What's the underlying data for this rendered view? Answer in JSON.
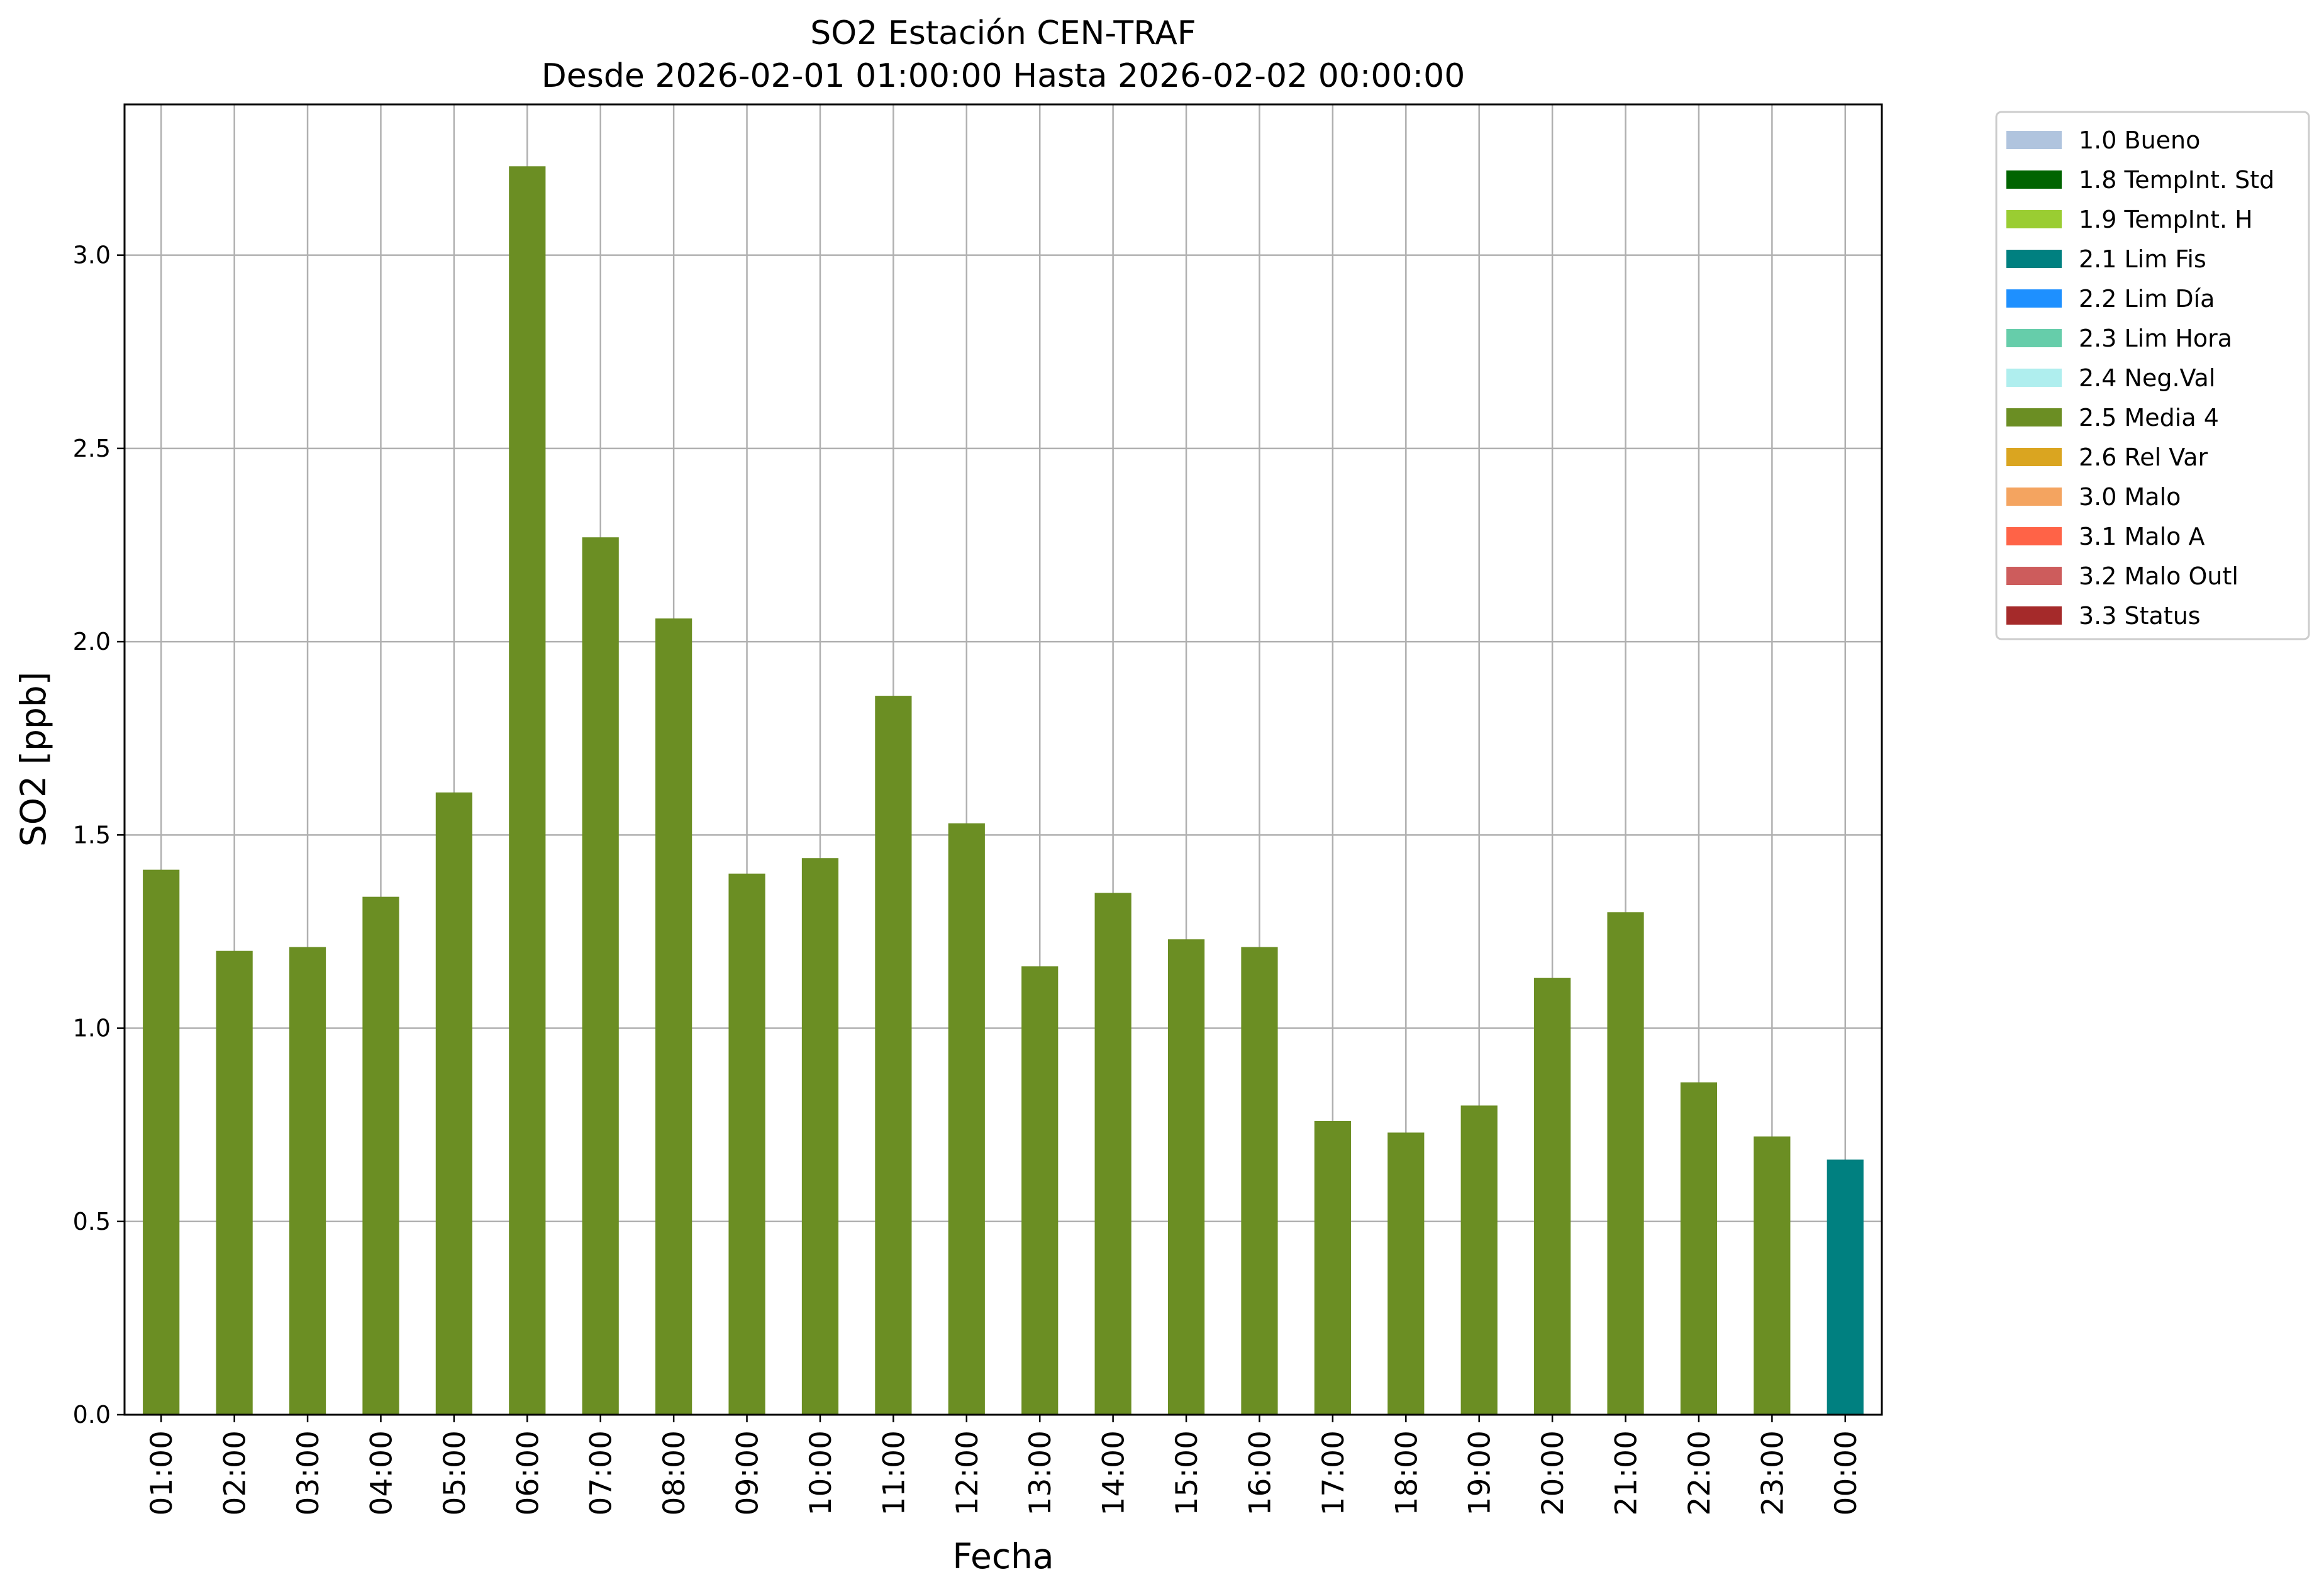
{
  "chart_data": {
    "type": "bar",
    "title": "SO2 Estación CEN-TRAF",
    "subtitle": "Desde 2026-02-01 01:00:00 Hasta 2026-02-02 00:00:00",
    "xlabel": "Fecha",
    "ylabel": "SO2 [ppb]",
    "ylim": [
      0,
      3.39
    ],
    "yticks": [
      "0.0",
      "0.5",
      "1.0",
      "1.5",
      "2.0",
      "2.5",
      "3.0"
    ],
    "yticks_values": [
      0,
      0.5,
      1.0,
      1.5,
      2.0,
      2.5,
      3.0
    ],
    "grid": true,
    "legend_position": "upper-right-outside",
    "categories": [
      "01:00",
      "02:00",
      "03:00",
      "04:00",
      "05:00",
      "06:00",
      "07:00",
      "08:00",
      "09:00",
      "10:00",
      "11:00",
      "12:00",
      "13:00",
      "14:00",
      "15:00",
      "16:00",
      "17:00",
      "18:00",
      "19:00",
      "20:00",
      "21:00",
      "22:00",
      "23:00",
      "00:00"
    ],
    "values": [
      1.41,
      1.2,
      1.21,
      1.34,
      1.61,
      3.23,
      2.27,
      2.06,
      1.4,
      1.44,
      1.86,
      1.53,
      1.16,
      1.35,
      1.23,
      1.21,
      0.76,
      0.73,
      0.8,
      1.13,
      1.3,
      0.86,
      0.72,
      0.66
    ],
    "bar_flags": [
      "2.5 Media 4",
      "2.5 Media 4",
      "2.5 Media 4",
      "2.5 Media 4",
      "2.5 Media 4",
      "2.5 Media 4",
      "2.5 Media 4",
      "2.5 Media 4",
      "2.5 Media 4",
      "2.5 Media 4",
      "2.5 Media 4",
      "2.5 Media 4",
      "2.5 Media 4",
      "2.5 Media 4",
      "2.5 Media 4",
      "2.5 Media 4",
      "2.5 Media 4",
      "2.5 Media 4",
      "2.5 Media 4",
      "2.5 Media 4",
      "2.5 Media 4",
      "2.5 Media 4",
      "2.5 Media 4",
      "2.1 Lim Fis"
    ],
    "legend": [
      {
        "label": "1.0 Bueno",
        "color": "#b0c4de"
      },
      {
        "label": "1.8 TempInt. Std",
        "color": "#006400"
      },
      {
        "label": "1.9 TempInt. H",
        "color": "#9acd32"
      },
      {
        "label": "2.1 Lim Fis",
        "color": "#008080"
      },
      {
        "label": "2.2 Lim Día",
        "color": "#1e90ff"
      },
      {
        "label": "2.3 Lim Hora",
        "color": "#66cdaa"
      },
      {
        "label": "2.4 Neg.Val",
        "color": "#afeeee"
      },
      {
        "label": "2.5 Media 4",
        "color": "#6b8e23"
      },
      {
        "label": "2.6 Rel Var",
        "color": "#daa520"
      },
      {
        "label": "3.0 Malo",
        "color": "#f4a460"
      },
      {
        "label": "3.1 Malo A",
        "color": "#ff6347"
      },
      {
        "label": "3.2 Malo Outl",
        "color": "#cd5c5c"
      },
      {
        "label": "3.3 Status",
        "color": "#a52a2a"
      }
    ]
  }
}
